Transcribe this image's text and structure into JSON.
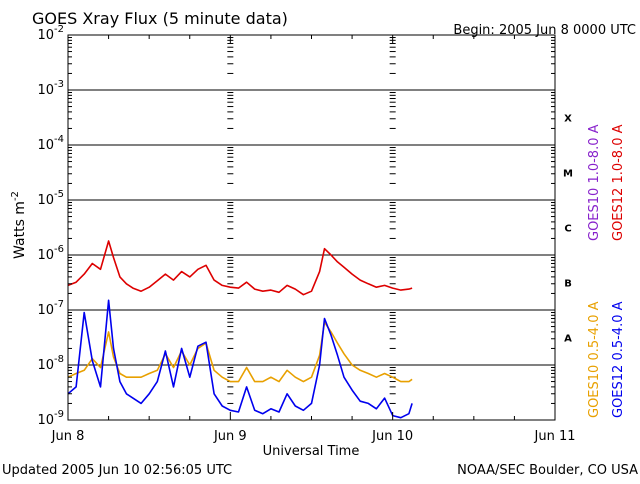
{
  "chart_data": {
    "type": "line",
    "title": "GOES Xray Flux (5 minute data)",
    "begin_label": "Begin:  2005 Jun 8 0000 UTC",
    "xlabel": "Universal Time",
    "ylabel_base": "Watts m",
    "ylabel_exp": "-2",
    "y_scale": "log",
    "ylim": [
      1e-09,
      0.01
    ],
    "xlim_days": [
      0,
      3
    ],
    "x_ticks": [
      {
        "day": 0,
        "label": "Jun 8"
      },
      {
        "day": 1,
        "label": "Jun 9"
      },
      {
        "day": 2,
        "label": "Jun 10"
      },
      {
        "day": 3,
        "label": "Jun 11"
      }
    ],
    "y_ticks": [
      {
        "exp": -2,
        "label": "10",
        "sup": "-2"
      },
      {
        "exp": -3,
        "label": "10",
        "sup": "-3"
      },
      {
        "exp": -4,
        "label": "10",
        "sup": "-4"
      },
      {
        "exp": -5,
        "label": "10",
        "sup": "-5"
      },
      {
        "exp": -6,
        "label": "10",
        "sup": "-6"
      },
      {
        "exp": -7,
        "label": "10",
        "sup": "-7"
      },
      {
        "exp": -8,
        "label": "10",
        "sup": "-8"
      },
      {
        "exp": -9,
        "label": "10",
        "sup": "-9"
      }
    ],
    "flare_classes": [
      {
        "label": "X",
        "exp": -3.5
      },
      {
        "label": "M",
        "exp": -4.5
      },
      {
        "label": "C",
        "exp": -5.5
      },
      {
        "label": "B",
        "exp": -6.5
      },
      {
        "label": "A",
        "exp": -7.5
      }
    ],
    "legend_right": [
      {
        "label": "GOES10 1.0-8.0 A",
        "color": "#8822cc"
      },
      {
        "label": "GOES12 1.0-8.0 A",
        "color": "#dd0000"
      }
    ],
    "legend_right_lower": [
      {
        "label": "GOES10 0.5-4.0 A",
        "color": "#e8a000"
      },
      {
        "label": "GOES12 0.5-4.0 A",
        "color": "#0000ee"
      }
    ],
    "series": [
      {
        "name": "GOES12 1.0-8.0 A",
        "color": "#dd0000",
        "x": [
          0.0,
          0.05,
          0.1,
          0.15,
          0.2,
          0.25,
          0.28,
          0.32,
          0.36,
          0.4,
          0.45,
          0.5,
          0.55,
          0.6,
          0.65,
          0.7,
          0.75,
          0.8,
          0.85,
          0.9,
          0.95,
          1.0,
          1.05,
          1.1,
          1.15,
          1.2,
          1.25,
          1.3,
          1.35,
          1.4,
          1.45,
          1.5,
          1.55,
          1.58,
          1.62,
          1.66,
          1.7,
          1.75,
          1.8,
          1.85,
          1.9,
          1.95,
          2.0,
          2.05,
          2.1,
          2.12
        ],
        "y": [
          2.8e-07,
          3.2e-07,
          4.5e-07,
          7e-07,
          5.5e-07,
          1.8e-06,
          9e-07,
          4e-07,
          3e-07,
          2.5e-07,
          2.2e-07,
          2.6e-07,
          3.4e-07,
          4.5e-07,
          3.5e-07,
          5e-07,
          4e-07,
          5.5e-07,
          6.5e-07,
          3.5e-07,
          2.8e-07,
          2.6e-07,
          2.5e-07,
          3.2e-07,
          2.4e-07,
          2.2e-07,
          2.3e-07,
          2.1e-07,
          2.8e-07,
          2.4e-07,
          1.9e-07,
          2.2e-07,
          5e-07,
          1.3e-06,
          1e-06,
          7.5e-07,
          6e-07,
          4.5e-07,
          3.5e-07,
          3e-07,
          2.6e-07,
          2.8e-07,
          2.5e-07,
          2.3e-07,
          2.4e-07,
          2.5e-07
        ]
      },
      {
        "name": "GOES10 0.5-4.0 A",
        "color": "#e8a000",
        "x": [
          0.0,
          0.05,
          0.1,
          0.15,
          0.2,
          0.25,
          0.28,
          0.32,
          0.36,
          0.4,
          0.45,
          0.5,
          0.55,
          0.6,
          0.65,
          0.7,
          0.75,
          0.8,
          0.85,
          0.9,
          0.95,
          1.0,
          1.05,
          1.1,
          1.15,
          1.2,
          1.25,
          1.3,
          1.35,
          1.4,
          1.45,
          1.5,
          1.55,
          1.58,
          1.62,
          1.66,
          1.7,
          1.75,
          1.8,
          1.85,
          1.9,
          1.95,
          2.0,
          2.05,
          2.1,
          2.12
        ],
        "y": [
          6e-09,
          7e-09,
          8e-09,
          1.3e-08,
          9e-09,
          4e-08,
          1.4e-08,
          7e-09,
          6e-09,
          6e-09,
          6e-09,
          7e-09,
          8e-09,
          1.6e-08,
          9e-09,
          1.8e-08,
          1e-08,
          2e-08,
          2.5e-08,
          8e-09,
          6e-09,
          5e-09,
          5e-09,
          9e-09,
          5e-09,
          5e-09,
          6e-09,
          5e-09,
          8e-09,
          6e-09,
          5e-09,
          6e-09,
          1.5e-08,
          6e-08,
          4e-08,
          2.5e-08,
          1.6e-08,
          1e-08,
          8e-09,
          7e-09,
          6e-09,
          7e-09,
          6e-09,
          5e-09,
          5e-09,
          5.5e-09
        ]
      },
      {
        "name": "GOES12 0.5-4.0 A",
        "color": "#0000ee",
        "x": [
          0.0,
          0.05,
          0.1,
          0.15,
          0.2,
          0.25,
          0.28,
          0.32,
          0.36,
          0.4,
          0.45,
          0.5,
          0.55,
          0.6,
          0.65,
          0.7,
          0.75,
          0.8,
          0.85,
          0.9,
          0.95,
          1.0,
          1.05,
          1.1,
          1.15,
          1.2,
          1.25,
          1.3,
          1.35,
          1.4,
          1.45,
          1.5,
          1.55,
          1.58,
          1.62,
          1.66,
          1.7,
          1.75,
          1.8,
          1.85,
          1.9,
          1.95,
          2.0,
          2.05,
          2.1,
          2.12
        ],
        "y": [
          3e-09,
          4e-09,
          9e-08,
          1.2e-08,
          4e-09,
          1.5e-07,
          2e-08,
          5e-09,
          3e-09,
          2.5e-09,
          2e-09,
          3e-09,
          5e-09,
          1.8e-08,
          4e-09,
          2e-08,
          6e-09,
          2.2e-08,
          2.6e-08,
          3e-09,
          1.8e-09,
          1.5e-09,
          1.4e-09,
          4e-09,
          1.5e-09,
          1.3e-09,
          1.6e-09,
          1.4e-09,
          3e-09,
          1.8e-09,
          1.5e-09,
          2e-09,
          1e-08,
          7e-08,
          3.5e-08,
          1.5e-08,
          6e-09,
          3.5e-09,
          2.2e-09,
          2e-09,
          1.6e-09,
          2.5e-09,
          1.2e-09,
          1.1e-09,
          1.3e-09,
          2e-09
        ]
      }
    ]
  },
  "footer": {
    "updated": "Updated 2005 Jun 10 02:56:05 UTC",
    "credit": "NOAA/SEC Boulder, CO USA"
  }
}
